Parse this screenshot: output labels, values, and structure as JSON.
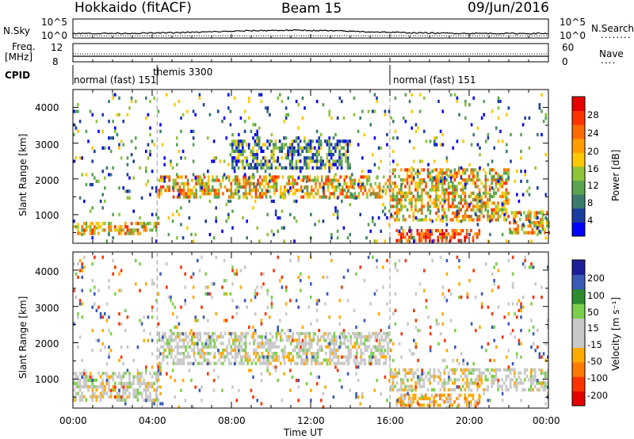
{
  "header": {
    "station": "Hokkaido (fitACF)",
    "beam": "Beam 15",
    "date": "09/Jun/2016"
  },
  "panels": {
    "nsky": {
      "label": "N.Sky",
      "left_ticks": [
        "10^5",
        "10^0"
      ],
      "right_ticks": [
        "10^5",
        "10^0"
      ],
      "right_label": "N.Search",
      "right_legend_line": "........"
    },
    "freq": {
      "label_line1": "Freq.",
      "label_line2": "[MHz]",
      "left_ticks": [
        "12",
        "8"
      ],
      "right_ticks": [
        "60",
        "0"
      ],
      "right_label": "Nave",
      "right_legend_line": "....",
      "nave_range": [
        0,
        60
      ],
      "freq_range": [
        8,
        12
      ]
    },
    "cpid": {
      "label": "CPID",
      "segments": [
        {
          "start_hour": 0,
          "end_hour": 4.25,
          "text": "normal (fast) 151"
        },
        {
          "start_hour": 4.25,
          "end_hour": 16,
          "text": "themis 3300"
        },
        {
          "start_hour": 16,
          "end_hour": 24,
          "text": "normal (fast) 151"
        }
      ]
    }
  },
  "chart_data": [
    {
      "type": "heatmap",
      "name": "power",
      "ylabel": "Slant Range [km]",
      "ylim": [
        200,
        4500
      ],
      "yticks": [
        1000,
        2000,
        3000,
        4000
      ],
      "xlim": [
        0,
        24
      ],
      "colorbar": {
        "label": "Power [dB]",
        "ticks": [
          "28",
          "24",
          "20",
          "16",
          "12",
          "8",
          "4"
        ],
        "range": [
          0,
          32
        ],
        "colors": [
          "#0000ff",
          "#1a3c9e",
          "#3a7d6e",
          "#5aa34f",
          "#8ec43a",
          "#ffc800",
          "#ff9d00",
          "#ff6a00",
          "#ff3300",
          "#e60000"
        ]
      },
      "features": [
        {
          "hours": [
            0,
            4.3
          ],
          "range_km": [
            450,
            800
          ],
          "level_db": 24
        },
        {
          "hours": [
            4.3,
            16
          ],
          "range_km": [
            1500,
            2100
          ],
          "level_db": 24
        },
        {
          "hours": [
            8,
            14
          ],
          "range_km": [
            2300,
            3100
          ],
          "level_db": 16
        },
        {
          "hours": [
            16,
            22
          ],
          "range_km": [
            900,
            2300
          ],
          "level_db": 24
        },
        {
          "hours": [
            16.3,
            20.5
          ],
          "range_km": [
            250,
            600
          ],
          "level_db": 28
        },
        {
          "hours": [
            22,
            24
          ],
          "range_km": [
            500,
            1100
          ],
          "level_db": 22
        }
      ]
    },
    {
      "type": "heatmap",
      "name": "velocity",
      "ylabel": "Slant Range [km]",
      "ylim": [
        200,
        4500
      ],
      "yticks": [
        1000,
        2000,
        3000,
        4000
      ],
      "xlim": [
        0,
        24
      ],
      "xticks": [
        "00:00",
        "04:00",
        "08:00",
        "12:00",
        "16:00",
        "20:00",
        "00:00"
      ],
      "xlabel": "Time UT",
      "colorbar": {
        "label": "Velocity [m s⁻¹]",
        "ticks": [
          "200",
          "100",
          "50",
          "15",
          "-15",
          "-50",
          "-100",
          "-200"
        ],
        "range": [
          -250,
          250
        ],
        "colors": [
          "#e60000",
          "#ff3300",
          "#ff7a00",
          "#ffaa00",
          "#c8c8c8",
          "#c8c8c8",
          "#7ad04a",
          "#2e8b2e",
          "#3a5ab8",
          "#1e1e9c"
        ]
      },
      "features": [
        {
          "hours": [
            0,
            4.3
          ],
          "range_km": [
            450,
            1200
          ],
          "dominant": "ground-scatter"
        },
        {
          "hours": [
            4.3,
            16
          ],
          "range_km": [
            1400,
            2300
          ],
          "dominant": "ground-scatter"
        },
        {
          "hours": [
            16,
            24
          ],
          "range_km": [
            700,
            1300
          ],
          "dominant": "ground-scatter"
        },
        {
          "hours": [
            16.3,
            20.5
          ],
          "range_km": [
            250,
            600
          ],
          "dominant": "negative-velocity"
        }
      ]
    }
  ]
}
